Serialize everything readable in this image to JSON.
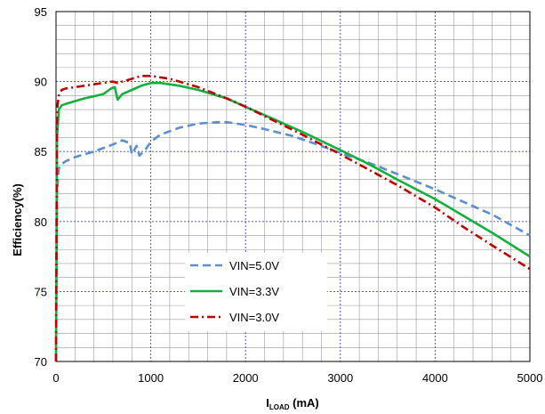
{
  "chart_data": {
    "type": "line",
    "ylabel": "Efficiency(%)",
    "xlabel": {
      "main": "I",
      "sub": "LOAD",
      "unit": " (mA)"
    },
    "xlim": [
      0,
      5000
    ],
    "ylim": [
      70,
      95
    ],
    "x_ticks": [
      0,
      1000,
      2000,
      3000,
      4000,
      5000
    ],
    "y_ticks": [
      70,
      75,
      80,
      85,
      90,
      95
    ],
    "x_major_step": 1000,
    "x_minor_step": 200,
    "y_major_step": 5,
    "y_minor_step": 1,
    "grid": true,
    "legend_position": "center-left",
    "series": [
      {
        "name": "VIN=5.0V",
        "color": "#5B8FD0",
        "dash": "dashed",
        "points": [
          [
            0,
            70
          ],
          [
            10,
            82
          ],
          [
            30,
            83.8
          ],
          [
            60,
            84.1
          ],
          [
            100,
            84.3
          ],
          [
            200,
            84.6
          ],
          [
            400,
            85
          ],
          [
            600,
            85.5
          ],
          [
            700,
            85.8
          ],
          [
            780,
            85.6
          ],
          [
            800,
            84.8
          ],
          [
            850,
            85.4
          ],
          [
            880,
            84.7
          ],
          [
            950,
            85.2
          ],
          [
            1000,
            85.7
          ],
          [
            1100,
            86.2
          ],
          [
            1300,
            86.7
          ],
          [
            1500,
            87
          ],
          [
            1700,
            87.1
          ],
          [
            1800,
            87.1
          ],
          [
            2000,
            86.9
          ],
          [
            2200,
            86.6
          ],
          [
            2500,
            86.1
          ],
          [
            2800,
            85.4
          ],
          [
            3000,
            84.9
          ],
          [
            3300,
            84.2
          ],
          [
            3600,
            83.4
          ],
          [
            4000,
            82.3
          ],
          [
            4300,
            81.4
          ],
          [
            4600,
            80.5
          ],
          [
            5000,
            79
          ]
        ]
      },
      {
        "name": "VIN=3.3V",
        "color": "#13B13C",
        "dash": "solid",
        "points": [
          [
            0,
            70
          ],
          [
            10,
            86
          ],
          [
            30,
            88
          ],
          [
            60,
            88.3
          ],
          [
            100,
            88.4
          ],
          [
            200,
            88.6
          ],
          [
            300,
            88.8
          ],
          [
            500,
            89.1
          ],
          [
            580,
            89.5
          ],
          [
            620,
            89.6
          ],
          [
            650,
            88.7
          ],
          [
            700,
            89.1
          ],
          [
            800,
            89.4
          ],
          [
            900,
            89.7
          ],
          [
            1000,
            89.9
          ],
          [
            1100,
            89.9
          ],
          [
            1300,
            89.7
          ],
          [
            1500,
            89.4
          ],
          [
            1800,
            88.8
          ],
          [
            2000,
            88.2
          ],
          [
            2300,
            87.3
          ],
          [
            2600,
            86.4
          ],
          [
            3000,
            85.1
          ],
          [
            3300,
            84.1
          ],
          [
            3600,
            83
          ],
          [
            4000,
            81.6
          ],
          [
            4300,
            80.4
          ],
          [
            4600,
            79.2
          ],
          [
            5000,
            77.5
          ]
        ]
      },
      {
        "name": "VIN=3.0V",
        "color": "#C00000",
        "dash": "dashdot",
        "points": [
          [
            0,
            70
          ],
          [
            10,
            88
          ],
          [
            30,
            89
          ],
          [
            60,
            89.4
          ],
          [
            100,
            89.5
          ],
          [
            200,
            89.6
          ],
          [
            400,
            89.8
          ],
          [
            600,
            90
          ],
          [
            650,
            89.9
          ],
          [
            700,
            90
          ],
          [
            800,
            90.2
          ],
          [
            900,
            90.4
          ],
          [
            1000,
            90.4
          ],
          [
            1200,
            90.2
          ],
          [
            1500,
            89.6
          ],
          [
            1800,
            88.8
          ],
          [
            2000,
            88.2
          ],
          [
            2300,
            87.2
          ],
          [
            2600,
            86.2
          ],
          [
            3000,
            84.8
          ],
          [
            3300,
            83.7
          ],
          [
            3600,
            82.6
          ],
          [
            4000,
            81
          ],
          [
            4300,
            79.6
          ],
          [
            4600,
            78.3
          ],
          [
            5000,
            76.6
          ]
        ]
      }
    ]
  }
}
